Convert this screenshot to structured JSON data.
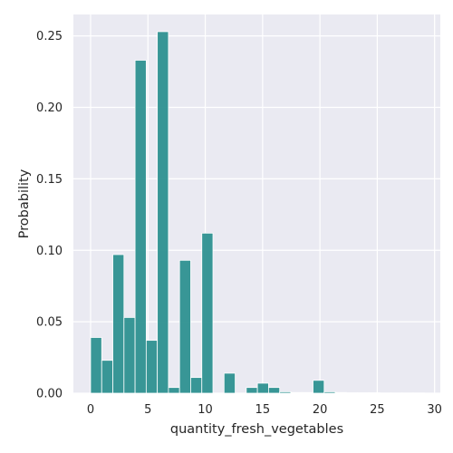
{
  "chart_data": {
    "type": "bar",
    "style": "histogram",
    "xlabel": "quantity_fresh_vegetables",
    "ylabel": "Probability",
    "xlim": [
      -1.5,
      30.5
    ],
    "ylim": [
      0,
      0.265
    ],
    "x_ticks": [
      0,
      5,
      10,
      15,
      20,
      25,
      30
    ],
    "y_ticks": [
      0.0,
      0.05,
      0.1,
      0.15,
      0.2,
      0.25
    ],
    "y_tick_labels": [
      "0.00",
      "0.05",
      "0.10",
      "0.15",
      "0.20",
      "0.25"
    ],
    "bin_width": 0.97,
    "bins": [
      {
        "x0": 0.0,
        "value": 0.039
      },
      {
        "x0": 0.97,
        "value": 0.023
      },
      {
        "x0": 1.94,
        "value": 0.097
      },
      {
        "x0": 2.91,
        "value": 0.053
      },
      {
        "x0": 3.88,
        "value": 0.233
      },
      {
        "x0": 4.85,
        "value": 0.037
      },
      {
        "x0": 5.82,
        "value": 0.253
      },
      {
        "x0": 6.79,
        "value": 0.004
      },
      {
        "x0": 7.76,
        "value": 0.093
      },
      {
        "x0": 8.73,
        "value": 0.011
      },
      {
        "x0": 9.7,
        "value": 0.112
      },
      {
        "x0": 10.67,
        "value": 0.0
      },
      {
        "x0": 11.64,
        "value": 0.014
      },
      {
        "x0": 12.61,
        "value": 0.0
      },
      {
        "x0": 13.58,
        "value": 0.004
      },
      {
        "x0": 14.55,
        "value": 0.007
      },
      {
        "x0": 15.52,
        "value": 0.004
      },
      {
        "x0": 16.49,
        "value": 0.001
      },
      {
        "x0": 17.46,
        "value": 0.0005
      },
      {
        "x0": 18.43,
        "value": 0.0005
      },
      {
        "x0": 19.4,
        "value": 0.009
      },
      {
        "x0": 20.37,
        "value": 0.001
      },
      {
        "x0": 21.34,
        "value": 0.0005
      },
      {
        "x0": 22.31,
        "value": 0.0003
      },
      {
        "x0": 23.28,
        "value": 0.0003
      },
      {
        "x0": 24.25,
        "value": 0.0003
      },
      {
        "x0": 25.22,
        "value": 0.0002
      },
      {
        "x0": 26.19,
        "value": 0.0002
      },
      {
        "x0": 27.16,
        "value": 0.0002
      },
      {
        "x0": 28.13,
        "value": 0.0002
      }
    ],
    "grid": true,
    "colors": {
      "bar": "#2e9190",
      "bar_edge": "#ffffff",
      "plot_background": "#eaeaf2",
      "grid": "#ffffff",
      "text": "#262626"
    }
  }
}
